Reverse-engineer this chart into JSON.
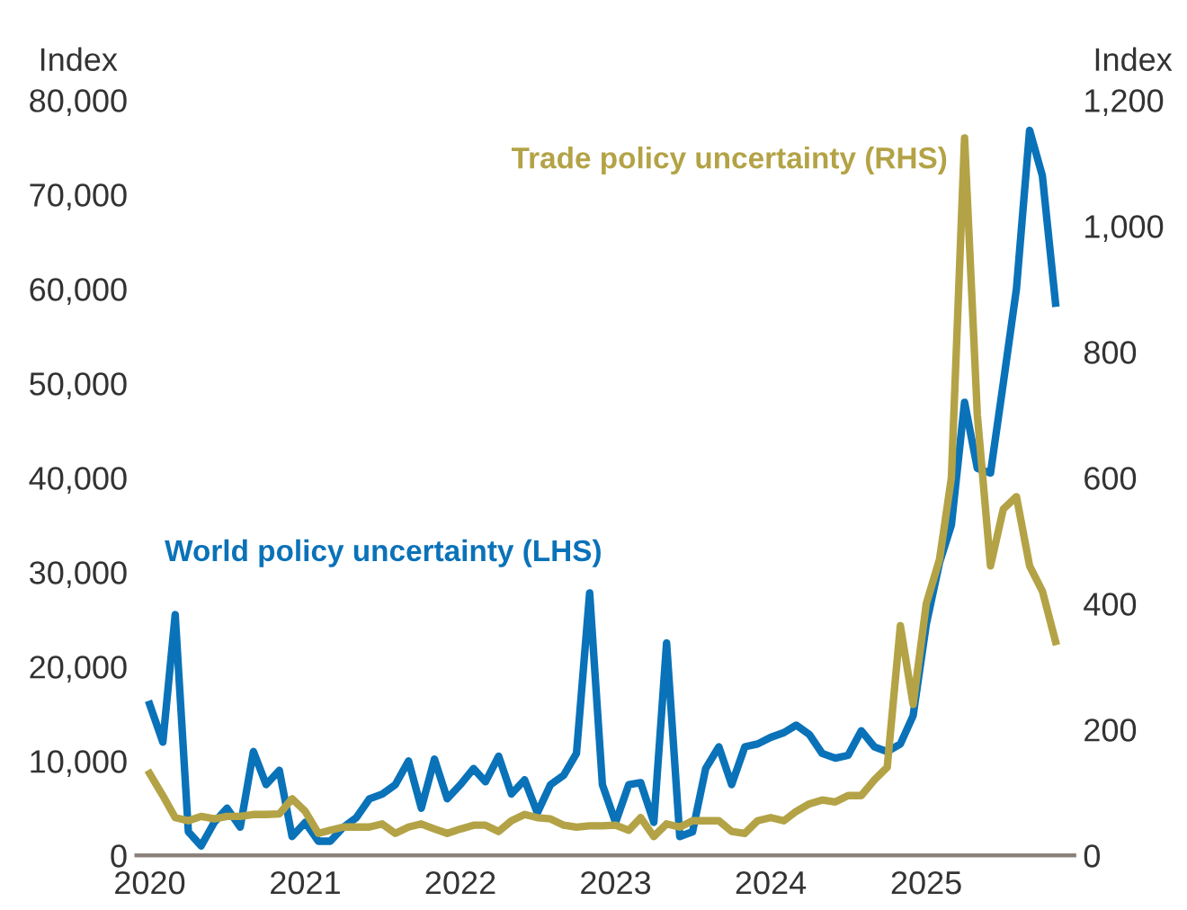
{
  "chart_data": {
    "type": "line",
    "ylabel": "Index",
    "y2label": "Index",
    "x": [
      "2020-01",
      "2020-02",
      "2020-03",
      "2020-04",
      "2020-05",
      "2020-06",
      "2020-07",
      "2020-08",
      "2020-09",
      "2020-10",
      "2020-11",
      "2020-12",
      "2021-01",
      "2021-02",
      "2021-03",
      "2021-04",
      "2021-05",
      "2021-06",
      "2021-07",
      "2021-08",
      "2021-09",
      "2021-10",
      "2021-11",
      "2021-12",
      "2022-01",
      "2022-02",
      "2022-03",
      "2022-04",
      "2022-05",
      "2022-06",
      "2022-07",
      "2022-08",
      "2022-09",
      "2022-10",
      "2022-11",
      "2022-12",
      "2023-01",
      "2023-02",
      "2023-03",
      "2023-04",
      "2023-05",
      "2023-06",
      "2023-07",
      "2023-08",
      "2023-09",
      "2023-10",
      "2023-11",
      "2023-12",
      "2024-01",
      "2024-02",
      "2024-03",
      "2024-04",
      "2024-05",
      "2024-06",
      "2024-07",
      "2024-08",
      "2024-09",
      "2024-10",
      "2024-11",
      "2024-12",
      "2025-01",
      "2025-02",
      "2025-03",
      "2025-04",
      "2025-05",
      "2025-06",
      "2025-07",
      "2025-08",
      "2025-09",
      "2025-10",
      "2025-11"
    ],
    "series": [
      {
        "name": "World policy uncertainty (LHS)",
        "color": "#0a72b8",
        "values": [
          16000,
          12000,
          25500,
          2500,
          1000,
          3500,
          5000,
          3000,
          11000,
          7500,
          9000,
          2000,
          3500,
          1500,
          1500,
          3000,
          4000,
          6000,
          6500,
          7500,
          10000,
          5000,
          10200,
          6000,
          7500,
          9200,
          7800,
          10500,
          6500,
          8000,
          4500,
          7500,
          8500,
          10800,
          27800,
          7500,
          3500,
          7500,
          7700,
          3500,
          22500,
          2000,
          2500,
          9200,
          11500,
          7500,
          11500,
          11800,
          12500,
          13000,
          13800,
          12800,
          10800,
          10300,
          10600,
          13200,
          11500,
          11000,
          11800,
          14800,
          24500,
          31000,
          35000,
          48000,
          41000,
          40500,
          50000,
          60000,
          76800,
          72000,
          58500
        ]
      },
      {
        "name": "Trade policy uncertainty (RHS)",
        "color": "#b3a346",
        "axis": "y2",
        "values": [
          130,
          95,
          60,
          55,
          62,
          58,
          62,
          62,
          65,
          65,
          66,
          90,
          70,
          35,
          40,
          45,
          45,
          45,
          50,
          35,
          45,
          50,
          42,
          35,
          42,
          48,
          48,
          38,
          55,
          65,
          60,
          58,
          48,
          45,
          47,
          47,
          48,
          40,
          60,
          30,
          50,
          45,
          55,
          55,
          55,
          38,
          35,
          55,
          60,
          55,
          70,
          82,
          88,
          85,
          95,
          95,
          120,
          140,
          365,
          240,
          400,
          470,
          600,
          1140,
          700,
          460,
          550,
          570,
          460,
          420,
          340
        ]
      }
    ],
    "xlim": [
      "2019-12-01",
      "2025-12-15"
    ],
    "xticks": [
      {
        "value": "2020-01",
        "label": "2020"
      },
      {
        "value": "2021-01",
        "label": "2021"
      },
      {
        "value": "2022-01",
        "label": "2022"
      },
      {
        "value": "2023-01",
        "label": "2023"
      },
      {
        "value": "2024-01",
        "label": "2024"
      },
      {
        "value": "2025-01",
        "label": "2025"
      }
    ],
    "ylim": [
      0,
      80000
    ],
    "yticks": [
      {
        "value": 0,
        "label": "0"
      },
      {
        "value": 10000,
        "label": "10,000"
      },
      {
        "value": 20000,
        "label": "20,000"
      },
      {
        "value": 30000,
        "label": "30,000"
      },
      {
        "value": 40000,
        "label": "40,000"
      },
      {
        "value": 50000,
        "label": "50,000"
      },
      {
        "value": 60000,
        "label": "60,000"
      },
      {
        "value": 70000,
        "label": "70,000"
      },
      {
        "value": 80000,
        "label": "80,000"
      }
    ],
    "y2lim": [
      0,
      1200
    ],
    "y2ticks": [
      {
        "value": 0,
        "label": "0"
      },
      {
        "value": 200,
        "label": "200"
      },
      {
        "value": 400,
        "label": "400"
      },
      {
        "value": 600,
        "label": "600"
      },
      {
        "value": 800,
        "label": "800"
      },
      {
        "value": 1000,
        "label": "1,000"
      },
      {
        "value": 1200,
        "label": "1,200"
      }
    ],
    "line_style": "solid"
  }
}
